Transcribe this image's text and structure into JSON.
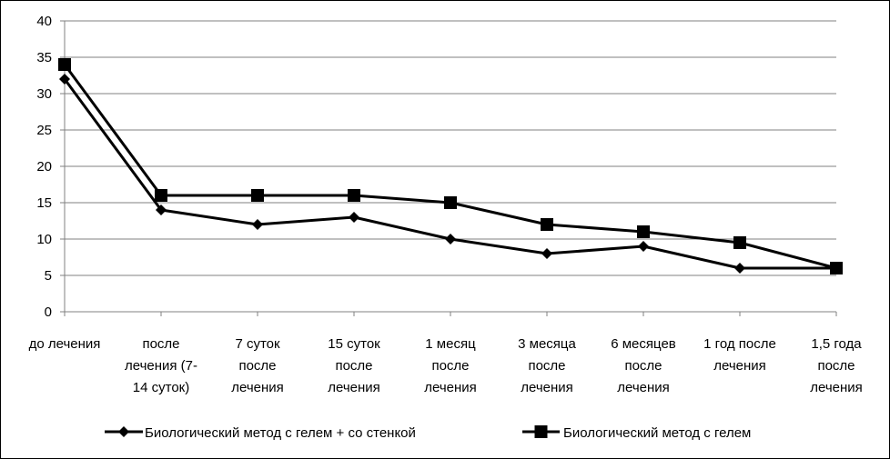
{
  "chart_data": {
    "type": "line",
    "categories": [
      [
        "до лечения"
      ],
      [
        "после",
        "лечения (7-",
        "14 суток)"
      ],
      [
        "7 суток",
        "после",
        "лечения"
      ],
      [
        "15 суток",
        "после",
        "лечения"
      ],
      [
        "1 месяц",
        "после",
        "лечения"
      ],
      [
        "3 месяца",
        "после",
        "лечения"
      ],
      [
        "6 месяцев",
        "после",
        "лечения"
      ],
      [
        "1 год после",
        "лечения"
      ],
      [
        "1,5 года",
        "после",
        "лечения"
      ]
    ],
    "series": [
      {
        "name": "Биологический метод с гелем + со стенкой",
        "marker": "diamond",
        "values": [
          32,
          14,
          12,
          13,
          10,
          8,
          9,
          6,
          6
        ]
      },
      {
        "name": "Биологический метод с гелем",
        "marker": "square",
        "values": [
          34,
          16,
          16,
          16,
          15,
          12,
          11,
          9.5,
          6
        ]
      }
    ],
    "ylim": [
      0,
      40
    ],
    "yticks": [
      0,
      5,
      10,
      15,
      20,
      25,
      30,
      35,
      40
    ],
    "grid": true,
    "legend": "bottom",
    "colors": {
      "line": "#000000",
      "grid": "#808080"
    }
  }
}
